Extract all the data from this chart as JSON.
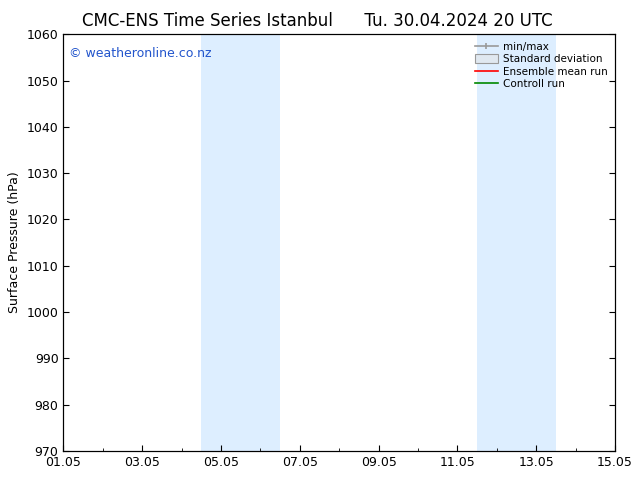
{
  "title": "CMC-ENS Time Series Istanbul",
  "title_right": "Tu. 30.04.2024 20 UTC",
  "ylabel": "Surface Pressure (hPa)",
  "watermark": "© weatheronline.co.nz",
  "ylim": [
    970,
    1060
  ],
  "yticks": [
    970,
    980,
    990,
    1000,
    1010,
    1020,
    1030,
    1040,
    1050,
    1060
  ],
  "xtick_labels": [
    "01.05",
    "03.05",
    "05.05",
    "07.05",
    "09.05",
    "11.05",
    "13.05",
    "15.05"
  ],
  "xtick_positions": [
    0,
    2,
    4,
    6,
    8,
    10,
    12,
    14
  ],
  "xmin": 0,
  "xmax": 14,
  "shaded_regions": [
    {
      "xstart": 3.5,
      "xend": 4.5
    },
    {
      "xstart": 4.5,
      "xend": 5.5
    },
    {
      "xstart": 10.5,
      "xend": 11.5
    },
    {
      "xstart": 11.5,
      "xend": 12.5
    }
  ],
  "shade_color": "#ddeeff",
  "bg_color": "#ffffff",
  "plot_bg_color": "#ffffff",
  "legend_labels": [
    "min/max",
    "Standard deviation",
    "Ensemble mean run",
    "Controll run"
  ],
  "legend_colors": [
    "#999999",
    "#cccccc",
    "#ff0000",
    "#008800"
  ],
  "title_fontsize": 12,
  "axis_fontsize": 9,
  "tick_fontsize": 9,
  "watermark_color": "#2255cc",
  "watermark_fontsize": 9
}
